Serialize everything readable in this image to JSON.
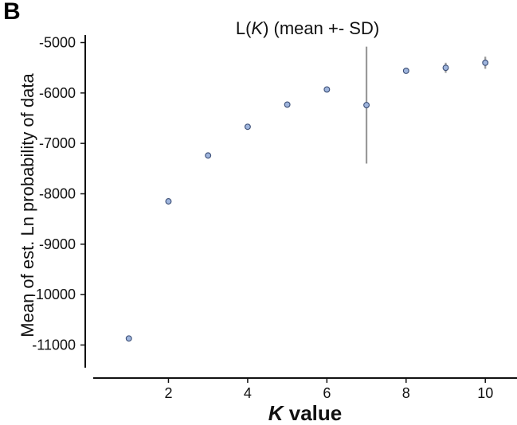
{
  "panel_label": "B",
  "chart_data": {
    "type": "scatter",
    "title_prefix": "L(",
    "title_italic": "K",
    "title_suffix": ") (mean +- SD)",
    "xlabel_italic": "K",
    "xlabel_suffix": " value",
    "ylabel": "Mean of est. Ln probability of data",
    "xlim": [
      0.1,
      10.8
    ],
    "ylim": [
      -11450,
      -4850
    ],
    "x_ticks": [
      2,
      4,
      6,
      8,
      10
    ],
    "x_tick_labels": [
      "2",
      "4",
      "6",
      "8",
      "10"
    ],
    "y_ticks": [
      -5000,
      -6000,
      -7000,
      -8000,
      -9000,
      -10000,
      -11000
    ],
    "y_tick_labels": [
      "-5000",
      "-6000",
      "-7000",
      "-8000",
      "-9000",
      "-10000",
      "-11000"
    ],
    "grid": false,
    "points": [
      {
        "x": 1,
        "y": -10870,
        "sd": 0
      },
      {
        "x": 2,
        "y": -8150,
        "sd": 0
      },
      {
        "x": 3,
        "y": -7240,
        "sd": 0
      },
      {
        "x": 4,
        "y": -6670,
        "sd": 0
      },
      {
        "x": 5,
        "y": -6230,
        "sd": 0
      },
      {
        "x": 6,
        "y": -5930,
        "sd": 0
      },
      {
        "x": 7,
        "y": -6240,
        "sd": 1160
      },
      {
        "x": 8,
        "y": -5560,
        "sd": 20
      },
      {
        "x": 9,
        "y": -5500,
        "sd": 100
      },
      {
        "x": 10,
        "y": -5400,
        "sd": 120
      }
    ],
    "colors": {
      "marker_fill": "#9fb5dd",
      "marker_edge": "#3a4d75",
      "error_bar": "#999999"
    }
  }
}
